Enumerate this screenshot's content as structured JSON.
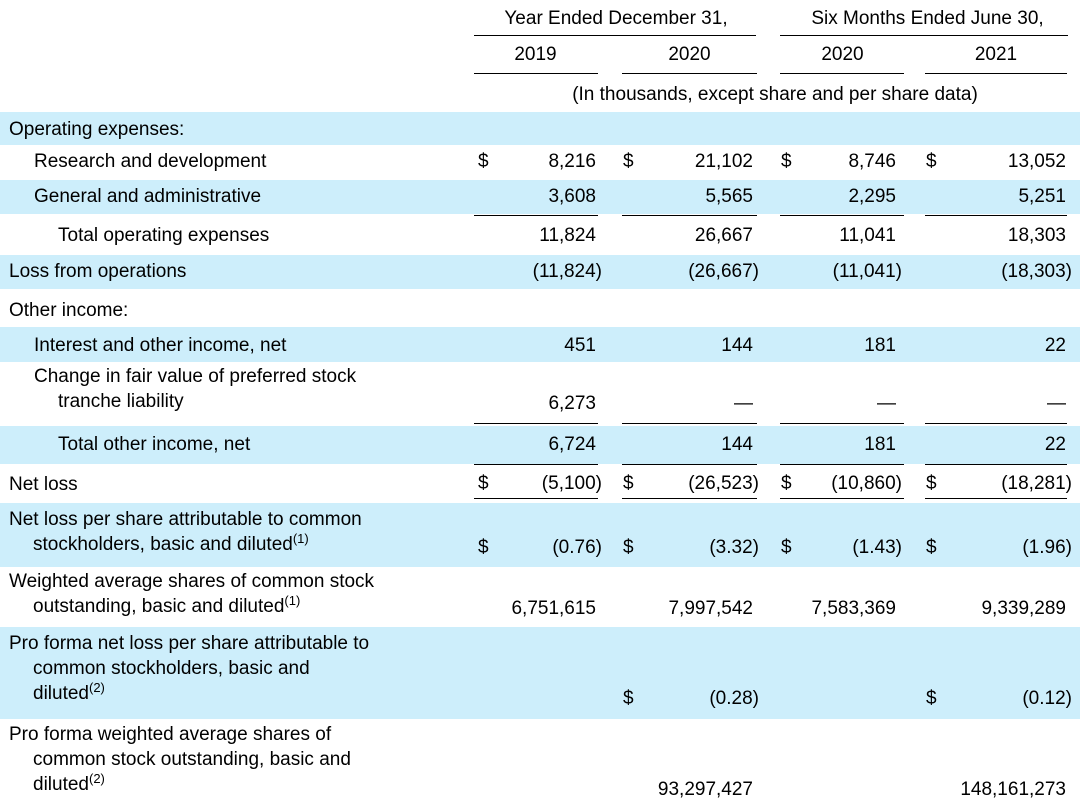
{
  "header": {
    "group_year": "Year Ended December 31,",
    "group_six": "Six Months Ended June 30,",
    "years": [
      "2019",
      "2020",
      "2020",
      "2021"
    ],
    "units": "(In thousands, except share and per share data)"
  },
  "rows": {
    "opex_header": {
      "label": "Operating expenses:"
    },
    "rnd": {
      "label": "Research and development",
      "cur": [
        "$",
        "$",
        "$",
        "$"
      ],
      "values": [
        "8,216",
        "21,102",
        "8,746",
        "13,052"
      ]
    },
    "gna": {
      "label": "General and administrative",
      "values": [
        "3,608",
        "5,565",
        "2,295",
        "5,251"
      ]
    },
    "total_opex": {
      "label": "Total operating expenses",
      "values": [
        "11,824",
        "26,667",
        "11,041",
        "18,303"
      ]
    },
    "loss_ops": {
      "label": "Loss from operations",
      "values": [
        "(11,824)",
        "(26,667)",
        "(11,041)",
        "(18,303)"
      ]
    },
    "other_header": {
      "label": "Other income:"
    },
    "interest": {
      "label": "Interest and other income, net",
      "values": [
        "451",
        "144",
        "181",
        "22"
      ]
    },
    "fair_value": {
      "label_line1": "Change in fair value of preferred stock",
      "label_line2": "tranche liability",
      "values": [
        "6,273",
        "—",
        "—",
        "—"
      ]
    },
    "total_other": {
      "label": "Total other income, net",
      "values": [
        "6,724",
        "144",
        "181",
        "22"
      ]
    },
    "net_loss": {
      "label": "Net loss",
      "cur": [
        "$",
        "$",
        "$",
        "$"
      ],
      "values": [
        "(5,100)",
        "(26,523)",
        "(10,860)",
        "(18,281)"
      ]
    },
    "nlps": {
      "label_line1": "Net loss per share attributable to common",
      "label_line2": "stockholders, basic and diluted",
      "note": "(1)",
      "cur": [
        "$",
        "$",
        "$",
        "$"
      ],
      "values": [
        "(0.76)",
        "(3.32)",
        "(1.43)",
        "(1.96)"
      ]
    },
    "wavg": {
      "label_line1": "Weighted average shares of common stock",
      "label_line2": "outstanding, basic and diluted",
      "note": "(1)",
      "values": [
        "6,751,615",
        "7,997,542",
        "7,583,369",
        "9,339,289"
      ]
    },
    "pf_nlps": {
      "label_line1": "Pro forma net loss per share attributable to",
      "label_line2": "common stockholders, basic and",
      "label_line3": "diluted",
      "note": "(2)",
      "cur": [
        "$",
        "$"
      ],
      "values": [
        "(0.28)",
        "(0.12)"
      ]
    },
    "pf_wavg": {
      "label_line1": "Pro forma weighted average shares of",
      "label_line2": "common stock outstanding, basic and",
      "label_line3": "diluted",
      "note": "(2)",
      "values": [
        "93,297,427",
        "148,161,273"
      ]
    }
  }
}
